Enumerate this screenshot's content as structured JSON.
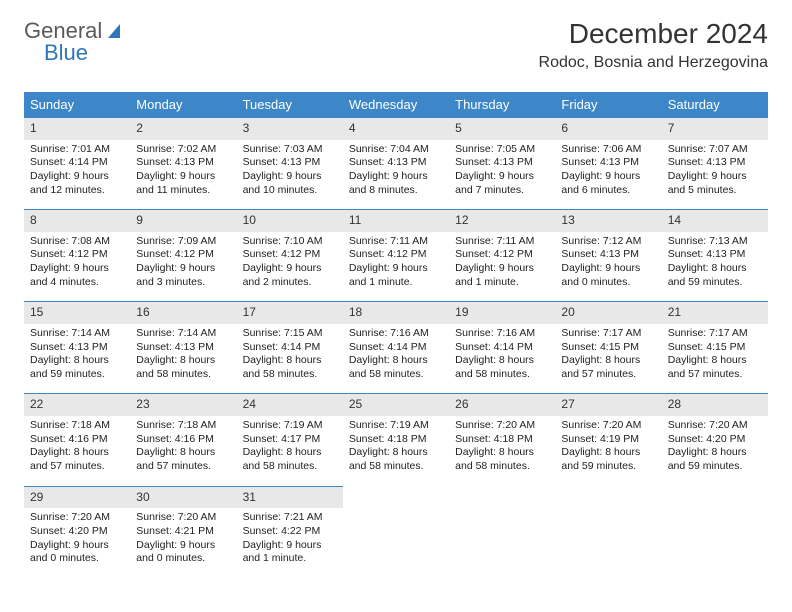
{
  "logo": {
    "text1": "General",
    "text2": "Blue"
  },
  "title": "December 2024",
  "location": "Rodoc, Bosnia and Herzegovina",
  "colors": {
    "header_bg": "#3d87c9",
    "header_text": "#ffffff",
    "daynum_bg": "#e8e8e8",
    "daynum_border": "#3d87c9",
    "body_text": "#222222",
    "page_bg": "#ffffff"
  },
  "day_names": [
    "Sunday",
    "Monday",
    "Tuesday",
    "Wednesday",
    "Thursday",
    "Friday",
    "Saturday"
  ],
  "weeks": [
    [
      {
        "n": "1",
        "sr": "Sunrise: 7:01 AM",
        "ss": "Sunset: 4:14 PM",
        "d1": "Daylight: 9 hours",
        "d2": "and 12 minutes."
      },
      {
        "n": "2",
        "sr": "Sunrise: 7:02 AM",
        "ss": "Sunset: 4:13 PM",
        "d1": "Daylight: 9 hours",
        "d2": "and 11 minutes."
      },
      {
        "n": "3",
        "sr": "Sunrise: 7:03 AM",
        "ss": "Sunset: 4:13 PM",
        "d1": "Daylight: 9 hours",
        "d2": "and 10 minutes."
      },
      {
        "n": "4",
        "sr": "Sunrise: 7:04 AM",
        "ss": "Sunset: 4:13 PM",
        "d1": "Daylight: 9 hours",
        "d2": "and 8 minutes."
      },
      {
        "n": "5",
        "sr": "Sunrise: 7:05 AM",
        "ss": "Sunset: 4:13 PM",
        "d1": "Daylight: 9 hours",
        "d2": "and 7 minutes."
      },
      {
        "n": "6",
        "sr": "Sunrise: 7:06 AM",
        "ss": "Sunset: 4:13 PM",
        "d1": "Daylight: 9 hours",
        "d2": "and 6 minutes."
      },
      {
        "n": "7",
        "sr": "Sunrise: 7:07 AM",
        "ss": "Sunset: 4:13 PM",
        "d1": "Daylight: 9 hours",
        "d2": "and 5 minutes."
      }
    ],
    [
      {
        "n": "8",
        "sr": "Sunrise: 7:08 AM",
        "ss": "Sunset: 4:12 PM",
        "d1": "Daylight: 9 hours",
        "d2": "and 4 minutes."
      },
      {
        "n": "9",
        "sr": "Sunrise: 7:09 AM",
        "ss": "Sunset: 4:12 PM",
        "d1": "Daylight: 9 hours",
        "d2": "and 3 minutes."
      },
      {
        "n": "10",
        "sr": "Sunrise: 7:10 AM",
        "ss": "Sunset: 4:12 PM",
        "d1": "Daylight: 9 hours",
        "d2": "and 2 minutes."
      },
      {
        "n": "11",
        "sr": "Sunrise: 7:11 AM",
        "ss": "Sunset: 4:12 PM",
        "d1": "Daylight: 9 hours",
        "d2": "and 1 minute."
      },
      {
        "n": "12",
        "sr": "Sunrise: 7:11 AM",
        "ss": "Sunset: 4:12 PM",
        "d1": "Daylight: 9 hours",
        "d2": "and 1 minute."
      },
      {
        "n": "13",
        "sr": "Sunrise: 7:12 AM",
        "ss": "Sunset: 4:13 PM",
        "d1": "Daylight: 9 hours",
        "d2": "and 0 minutes."
      },
      {
        "n": "14",
        "sr": "Sunrise: 7:13 AM",
        "ss": "Sunset: 4:13 PM",
        "d1": "Daylight: 8 hours",
        "d2": "and 59 minutes."
      }
    ],
    [
      {
        "n": "15",
        "sr": "Sunrise: 7:14 AM",
        "ss": "Sunset: 4:13 PM",
        "d1": "Daylight: 8 hours",
        "d2": "and 59 minutes."
      },
      {
        "n": "16",
        "sr": "Sunrise: 7:14 AM",
        "ss": "Sunset: 4:13 PM",
        "d1": "Daylight: 8 hours",
        "d2": "and 58 minutes."
      },
      {
        "n": "17",
        "sr": "Sunrise: 7:15 AM",
        "ss": "Sunset: 4:14 PM",
        "d1": "Daylight: 8 hours",
        "d2": "and 58 minutes."
      },
      {
        "n": "18",
        "sr": "Sunrise: 7:16 AM",
        "ss": "Sunset: 4:14 PM",
        "d1": "Daylight: 8 hours",
        "d2": "and 58 minutes."
      },
      {
        "n": "19",
        "sr": "Sunrise: 7:16 AM",
        "ss": "Sunset: 4:14 PM",
        "d1": "Daylight: 8 hours",
        "d2": "and 58 minutes."
      },
      {
        "n": "20",
        "sr": "Sunrise: 7:17 AM",
        "ss": "Sunset: 4:15 PM",
        "d1": "Daylight: 8 hours",
        "d2": "and 57 minutes."
      },
      {
        "n": "21",
        "sr": "Sunrise: 7:17 AM",
        "ss": "Sunset: 4:15 PM",
        "d1": "Daylight: 8 hours",
        "d2": "and 57 minutes."
      }
    ],
    [
      {
        "n": "22",
        "sr": "Sunrise: 7:18 AM",
        "ss": "Sunset: 4:16 PM",
        "d1": "Daylight: 8 hours",
        "d2": "and 57 minutes."
      },
      {
        "n": "23",
        "sr": "Sunrise: 7:18 AM",
        "ss": "Sunset: 4:16 PM",
        "d1": "Daylight: 8 hours",
        "d2": "and 57 minutes."
      },
      {
        "n": "24",
        "sr": "Sunrise: 7:19 AM",
        "ss": "Sunset: 4:17 PM",
        "d1": "Daylight: 8 hours",
        "d2": "and 58 minutes."
      },
      {
        "n": "25",
        "sr": "Sunrise: 7:19 AM",
        "ss": "Sunset: 4:18 PM",
        "d1": "Daylight: 8 hours",
        "d2": "and 58 minutes."
      },
      {
        "n": "26",
        "sr": "Sunrise: 7:20 AM",
        "ss": "Sunset: 4:18 PM",
        "d1": "Daylight: 8 hours",
        "d2": "and 58 minutes."
      },
      {
        "n": "27",
        "sr": "Sunrise: 7:20 AM",
        "ss": "Sunset: 4:19 PM",
        "d1": "Daylight: 8 hours",
        "d2": "and 59 minutes."
      },
      {
        "n": "28",
        "sr": "Sunrise: 7:20 AM",
        "ss": "Sunset: 4:20 PM",
        "d1": "Daylight: 8 hours",
        "d2": "and 59 minutes."
      }
    ],
    [
      {
        "n": "29",
        "sr": "Sunrise: 7:20 AM",
        "ss": "Sunset: 4:20 PM",
        "d1": "Daylight: 9 hours",
        "d2": "and 0 minutes."
      },
      {
        "n": "30",
        "sr": "Sunrise: 7:20 AM",
        "ss": "Sunset: 4:21 PM",
        "d1": "Daylight: 9 hours",
        "d2": "and 0 minutes."
      },
      {
        "n": "31",
        "sr": "Sunrise: 7:21 AM",
        "ss": "Sunset: 4:22 PM",
        "d1": "Daylight: 9 hours",
        "d2": "and 1 minute."
      },
      null,
      null,
      null,
      null
    ]
  ]
}
